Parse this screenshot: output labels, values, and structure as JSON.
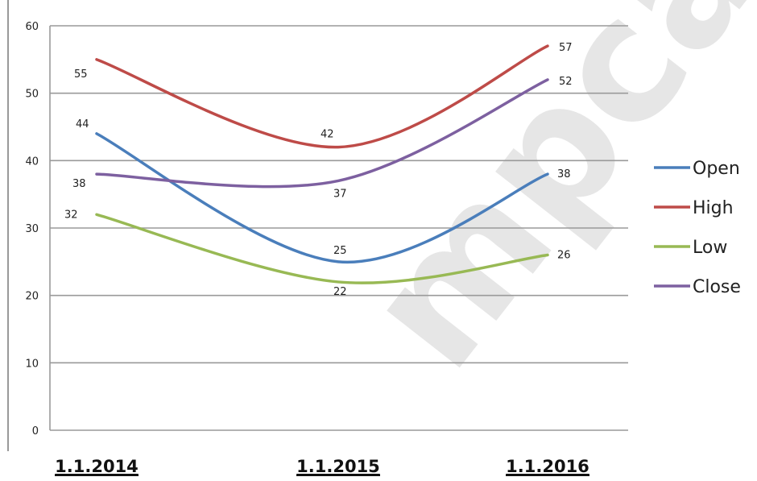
{
  "chart_data": {
    "type": "line",
    "title": "",
    "xlabel": "",
    "ylabel": "",
    "categories": [
      "1.1.2014",
      "1.1.2015",
      "1.1.2016"
    ],
    "ylim": [
      0,
      60
    ],
    "yticks": [
      "0",
      "10",
      "20",
      "30",
      "40",
      "50",
      "60"
    ],
    "grid": true,
    "legend_position": "right",
    "series": [
      {
        "name": "Open",
        "values": [
          44,
          25,
          38
        ],
        "color": "#4a7ebb"
      },
      {
        "name": "High",
        "values": [
          55,
          42,
          57
        ],
        "color": "#be4b48"
      },
      {
        "name": "Low",
        "values": [
          32,
          22,
          26
        ],
        "color": "#98b954"
      },
      {
        "name": "Close",
        "values": [
          38,
          37,
          52
        ],
        "color": "#7d60a0"
      }
    ]
  }
}
